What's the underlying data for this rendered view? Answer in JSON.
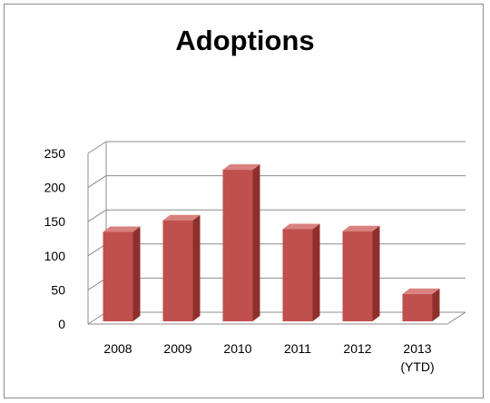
{
  "chart_data": {
    "type": "bar",
    "title": "Adoptions",
    "xlabel": "",
    "ylabel": "",
    "categories": [
      [
        "2008"
      ],
      [
        "2009"
      ],
      [
        "2010"
      ],
      [
        "2011"
      ],
      [
        "2012"
      ],
      [
        "2013",
        "(YTD)"
      ]
    ],
    "values": [
      135,
      152,
      226,
      139,
      136,
      44
    ],
    "ylim": [
      0,
      250
    ],
    "yticks": [
      "0",
      "50",
      "100",
      "150",
      "200",
      "250"
    ],
    "grid": true,
    "style": "3d-column",
    "colors": {
      "bar_front": "#c0504d",
      "bar_side": "#8e2f2c",
      "bar_top": "#d9817e",
      "gridline": "#8c8c8c"
    }
  }
}
